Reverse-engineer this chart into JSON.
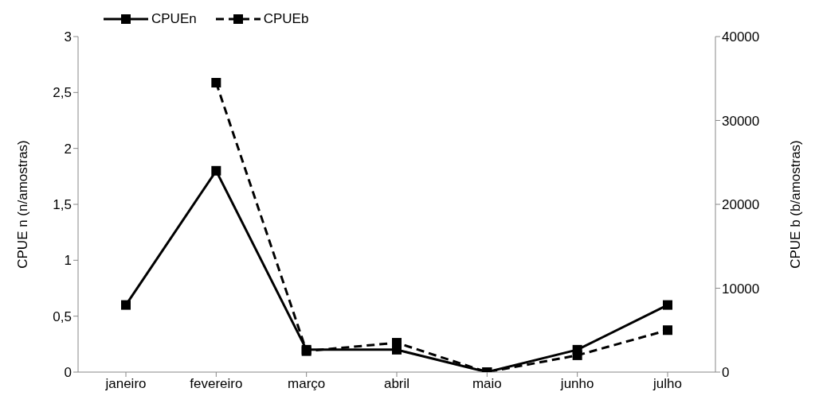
{
  "chart_data": {
    "type": "line",
    "categories": [
      "janeiro",
      "fevereiro",
      "março",
      "abril",
      "maio",
      "junho",
      "julho"
    ],
    "ylabel": "CPUE n (n/amostras)",
    "y2label": "CPUE b (b/amostras)",
    "ylim": [
      0,
      3
    ],
    "yticks": [
      0,
      {
        "value": 0.5,
        "label": "0,5"
      },
      1,
      {
        "value": 1.5,
        "label": "1,5"
      },
      2,
      {
        "value": 2.5,
        "label": "2,5"
      },
      3
    ],
    "y2lim": [
      0,
      40000
    ],
    "y2ticks": [
      0,
      10000,
      20000,
      30000,
      40000
    ],
    "series": [
      {
        "name": "CPUEn",
        "color": "#000000",
        "line_style": "solid",
        "values": [
          0.6,
          1.8,
          0.2,
          0.2,
          0,
          0.2,
          0.6
        ]
      },
      {
        "name": "CPUEb",
        "color": "#000000",
        "line_style": "dashed",
        "axis": "y2",
        "values": [
          null,
          34500,
          2500,
          3500,
          0,
          2000,
          5000
        ]
      }
    ],
    "marker": "square",
    "grid": false,
    "legend": "top left"
  }
}
